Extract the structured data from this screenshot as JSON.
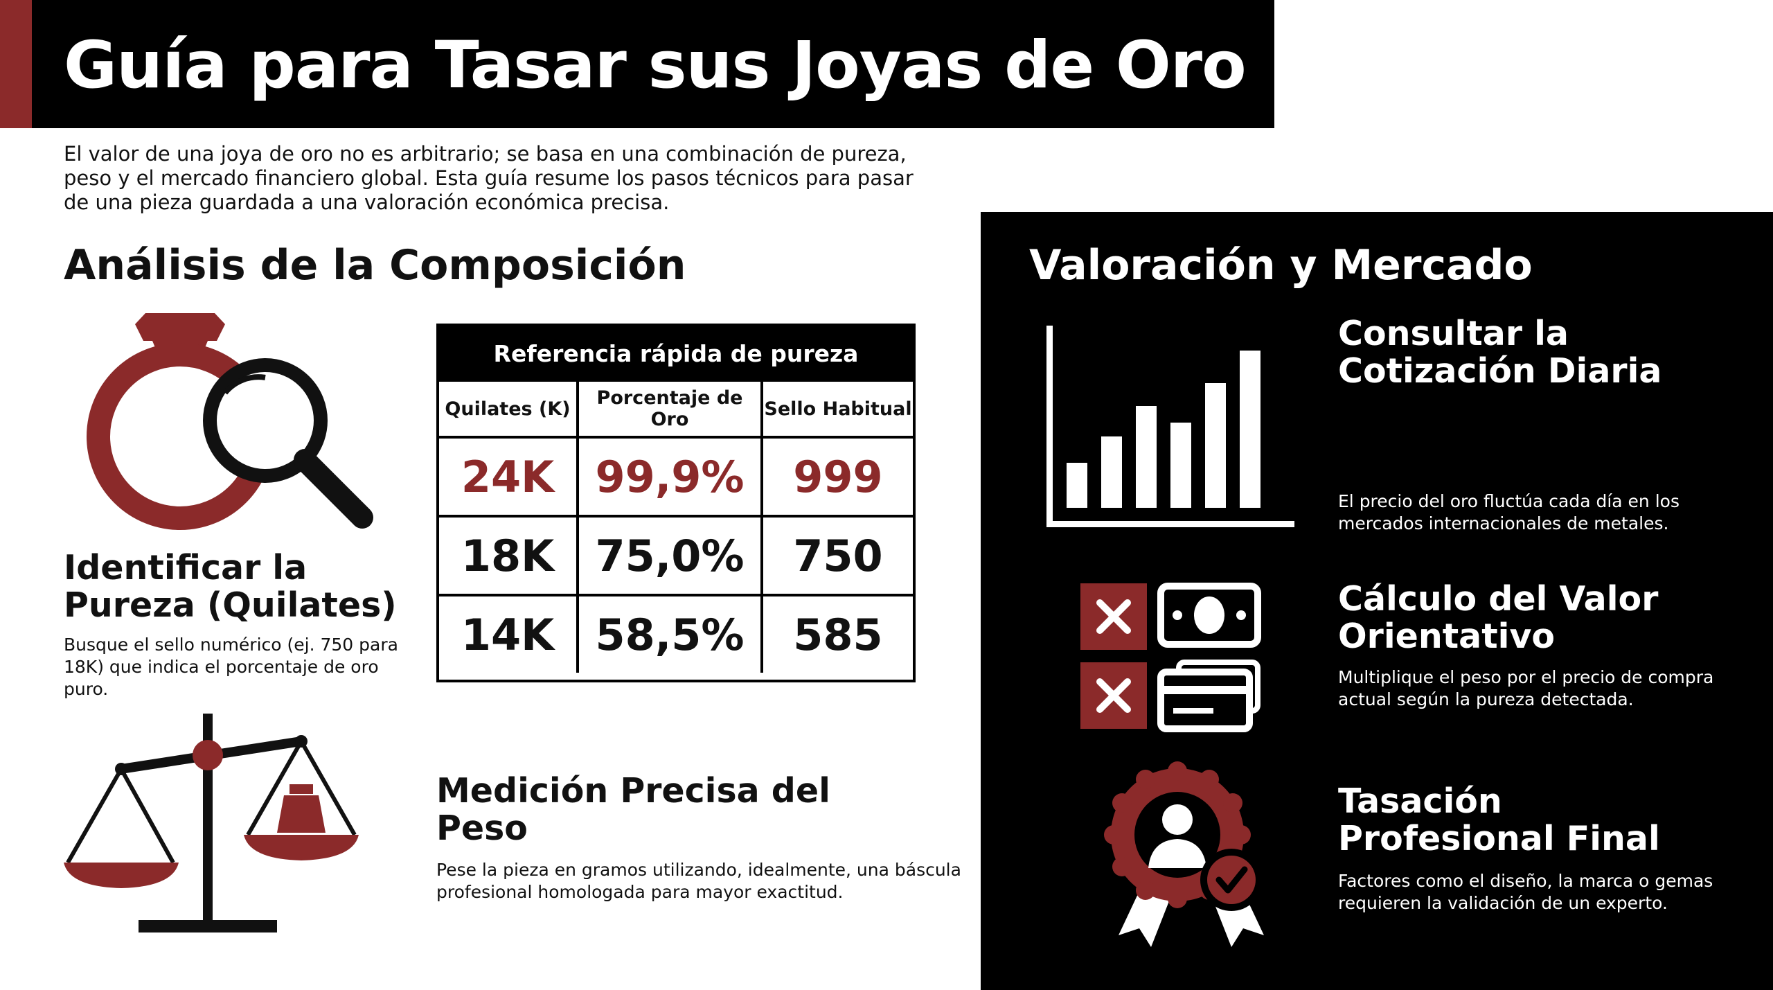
{
  "header": {
    "title": "Guía para Tasar sus Joyas de Oro"
  },
  "intro": "El valor de una joya de oro no es arbitrario; se basa en una combinación de pureza, peso y el mercado financiero global. Esta guía resume los pasos técnicos para pasar de una pieza guardada a una valoración económica precisa.",
  "composition": {
    "heading": "Análisis de la Composición",
    "purity": {
      "title": "Identificar la Pureza (Quilates)",
      "text": "Busque el sello numérico (ej. 750 para 18K) que indica el porcentaje de oro puro.",
      "icon": "ring-magnifier-icon"
    },
    "weight": {
      "title": "Medición Precisa del Peso",
      "text": "Pese la pieza en gramos utilizando, idealmente, una báscula profesional homologada para mayor exactitud.",
      "icon": "balance-scale-icon"
    },
    "table": {
      "caption": "Referencia rápida de pureza",
      "headers": [
        "Quilates (K)",
        "Porcentaje de Oro",
        "Sello Habitual"
      ],
      "rows": [
        [
          "24K",
          "99,9%",
          "999"
        ],
        [
          "18K",
          "75,0%",
          "750"
        ],
        [
          "14K",
          "58,5%",
          "585"
        ]
      ]
    }
  },
  "market": {
    "heading": "Valoración y Mercado",
    "items": [
      {
        "title": "Consultar la Cotización Diaria",
        "text": "El precio del oro fluctúa cada día en los mercados internacionales de metales.",
        "icon": "bar-chart-icon"
      },
      {
        "title": "Cálculo del Valor Orientativo",
        "text": "Multiplique el peso por el precio de compra actual según la pureza detectada.",
        "icon": "cash-card-icon"
      },
      {
        "title": "Tasación Profesional Final",
        "text": "Factores como el diseño, la marca o gemas requieren la validación de un experto.",
        "icon": "certified-expert-icon"
      }
    ]
  },
  "colors": {
    "accent": "#8b2a2a",
    "dark": "#000000",
    "light": "#ffffff"
  }
}
